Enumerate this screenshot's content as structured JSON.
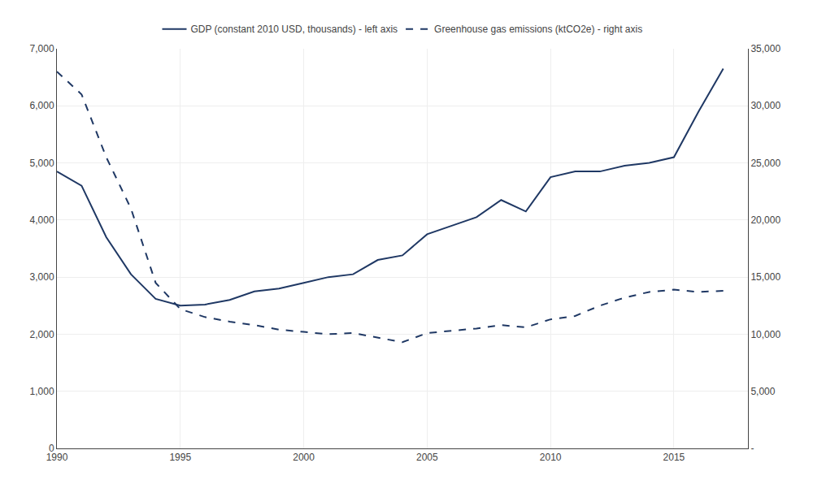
{
  "chart_data": {
    "type": "line",
    "x": [
      1990,
      1991,
      1992,
      1993,
      1994,
      1995,
      1996,
      1997,
      1998,
      1999,
      2000,
      2001,
      2002,
      2003,
      2004,
      2005,
      2006,
      2007,
      2008,
      2009,
      2010,
      2011,
      2012,
      2013,
      2014,
      2015,
      2016,
      2017
    ],
    "series": [
      {
        "name": "GDP (constant 2010 USD, thousands) - left axis",
        "color": "#1F3864",
        "line_style": "solid",
        "values": [
          4850,
          4600,
          3700,
          3050,
          2620,
          2500,
          2520,
          2600,
          2750,
          2800,
          2900,
          3000,
          3050,
          3300,
          3380,
          3750,
          3900,
          4050,
          4350,
          4150,
          4750,
          4850,
          4850,
          4950,
          5000,
          5100,
          5900,
          6650
        ]
      },
      {
        "name": "Greenhouse gas emissions (ktCO2e) - right axis",
        "color": "#1F3864",
        "line_style": "dashed",
        "axis": "y2",
        "values": [
          33000,
          31000,
          25500,
          21000,
          14500,
          12200,
          11500,
          11100,
          10800,
          10400,
          10200,
          10000,
          10100,
          9700,
          9300,
          10100,
          10300,
          10500,
          10800,
          10600,
          11300,
          11600,
          12500,
          13200,
          13700,
          13900,
          13700,
          13800
        ]
      }
    ],
    "xlim": [
      1990,
      2018
    ],
    "xticks": [
      1990,
      1995,
      2000,
      2005,
      2010,
      2015
    ],
    "ylim": [
      0,
      7000
    ],
    "yticks": [
      0,
      {
        "value": 1000,
        "label": "1,000"
      },
      {
        "value": 2000,
        "label": "2,000"
      },
      {
        "value": 3000,
        "label": "3,000"
      },
      {
        "value": 4000,
        "label": "4,000"
      },
      {
        "value": 5000,
        "label": "5,000"
      },
      {
        "value": 6000,
        "label": "6,000"
      },
      {
        "value": 7000,
        "label": "7,000"
      }
    ],
    "y2lim": [
      0,
      35000
    ],
    "y2ticks": [
      {
        "value": 0,
        "label": "-"
      },
      {
        "value": 5000,
        "label": "5,000"
      },
      {
        "value": 10000,
        "label": "10,000"
      },
      {
        "value": 15000,
        "label": "15,000"
      },
      {
        "value": 20000,
        "label": "20,000"
      },
      {
        "value": 25000,
        "label": "25,000"
      },
      {
        "value": 30000,
        "label": "30,000"
      },
      {
        "value": 35000,
        "label": "35,000"
      }
    ],
    "grid": true,
    "legend": "top"
  }
}
